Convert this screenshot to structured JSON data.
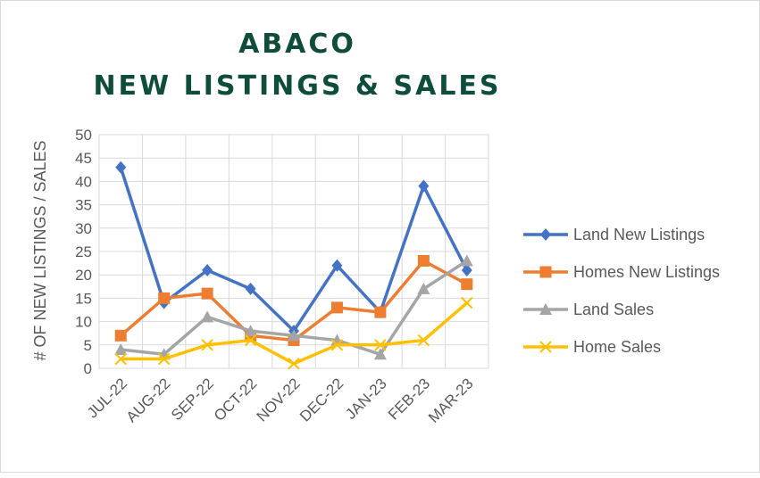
{
  "chart_data": {
    "type": "line",
    "title_lines": [
      "ABACO",
      "NEW LISTINGS & SALES"
    ],
    "xlabel": "",
    "ylabel": "# OF NEW LISTINGS / SALES",
    "ylim": [
      0,
      50
    ],
    "y_ticks": [
      0,
      5,
      10,
      15,
      20,
      25,
      30,
      35,
      40,
      45,
      50
    ],
    "grid": true,
    "legend_position": "right",
    "categories": [
      "JUL-22",
      "AUG-22",
      "SEP-22",
      "OCT-22",
      "NOV-22",
      "DEC-22",
      "JAN-23",
      "FEB-23",
      "MAR-23"
    ],
    "series": [
      {
        "name": "Land New Listings",
        "color": "#4472c4",
        "marker": "diamond",
        "values": [
          43,
          14,
          21,
          17,
          8,
          22,
          12,
          39,
          21
        ]
      },
      {
        "name": "Homes New Listings",
        "color": "#ed7d31",
        "marker": "square",
        "values": [
          7,
          15,
          16,
          7,
          6,
          13,
          12,
          23,
          18
        ]
      },
      {
        "name": "Land Sales",
        "color": "#a5a5a5",
        "marker": "triangle",
        "values": [
          4,
          3,
          11,
          8,
          7,
          6,
          3,
          17,
          23
        ]
      },
      {
        "name": "Home Sales",
        "color": "#ffc000",
        "marker": "x",
        "values": [
          2,
          2,
          5,
          6,
          1,
          5,
          5,
          6,
          14
        ]
      }
    ]
  }
}
